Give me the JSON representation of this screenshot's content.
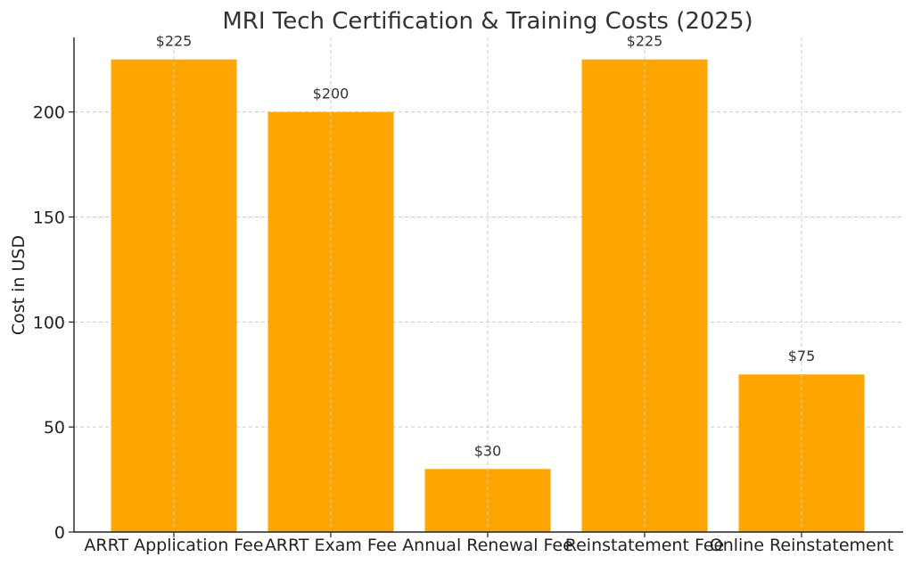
{
  "chart_data": {
    "type": "bar",
    "title": "MRI Tech Certification & Training Costs (2025)",
    "xlabel": "",
    "ylabel": "Cost in USD",
    "categories": [
      "ARRT Application Fee",
      "ARRT Exam Fee",
      "Annual Renewal Fee",
      "Reinstatement Fee",
      "Online Reinstatement"
    ],
    "values": [
      225,
      200,
      30,
      225,
      75
    ],
    "data_labels": [
      "$225",
      "$200",
      "$30",
      "$225",
      "$75"
    ],
    "ylim": [
      0,
      235
    ],
    "yticks": [
      0,
      50,
      100,
      150,
      200
    ],
    "ytick_labels": [
      "0",
      "50",
      "100",
      "150",
      "200"
    ],
    "grid": true,
    "bar_color": "#FFA500"
  }
}
